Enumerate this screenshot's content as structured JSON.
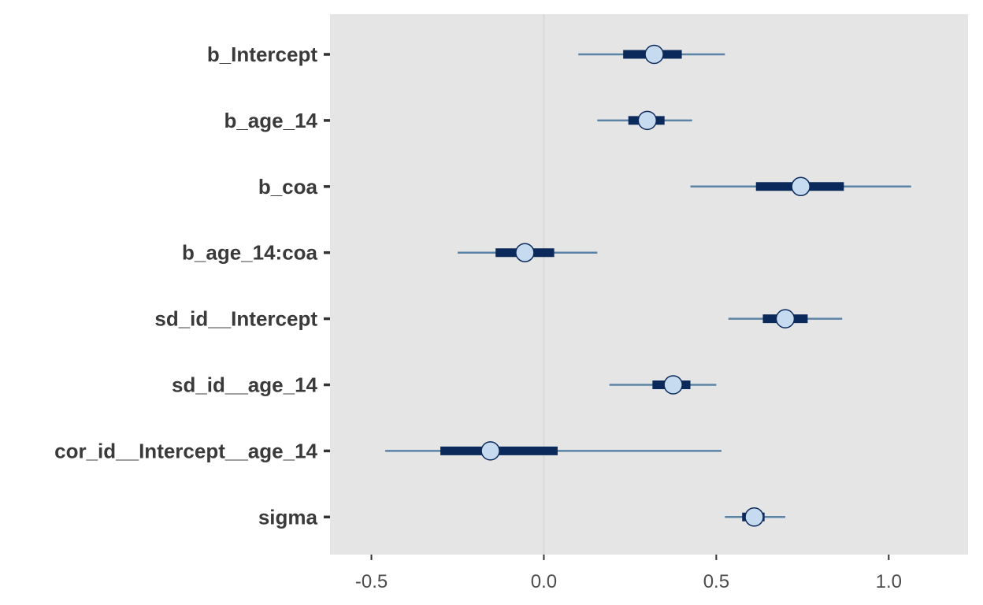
{
  "chart_data": {
    "type": "interval",
    "title": "",
    "xlabel": "",
    "ylabel": "",
    "xlim": [
      -0.62,
      1.23
    ],
    "x_ticks": [
      -0.5,
      0.0,
      0.5,
      1.0
    ],
    "x_tick_labels": [
      "-0.5",
      "0.0",
      "0.5",
      "1.0"
    ],
    "reference_line_x": 0,
    "grid": false,
    "legend": "none",
    "parameters": [
      {
        "name": "b_Intercept",
        "estimate": 0.32,
        "inner": [
          0.23,
          0.4
        ],
        "outer": [
          0.1,
          0.525
        ]
      },
      {
        "name": "b_age_14",
        "estimate": 0.3,
        "inner": [
          0.245,
          0.35
        ],
        "outer": [
          0.155,
          0.43
        ]
      },
      {
        "name": "b_coa",
        "estimate": 0.745,
        "inner": [
          0.615,
          0.87
        ],
        "outer": [
          0.425,
          1.065
        ]
      },
      {
        "name": "b_age_14:coa",
        "estimate": -0.055,
        "inner": [
          -0.14,
          0.03
        ],
        "outer": [
          -0.25,
          0.155
        ]
      },
      {
        "name": "sd_id__Intercept",
        "estimate": 0.7,
        "inner": [
          0.635,
          0.765
        ],
        "outer": [
          0.535,
          0.865
        ]
      },
      {
        "name": "sd_id__age_14",
        "estimate": 0.375,
        "inner": [
          0.315,
          0.425
        ],
        "outer": [
          0.19,
          0.5
        ]
      },
      {
        "name": "cor_id__Intercept__age_14",
        "estimate": -0.155,
        "inner": [
          -0.3,
          0.04
        ],
        "outer": [
          -0.46,
          0.515
        ]
      },
      {
        "name": "sigma",
        "estimate": 0.61,
        "inner": [
          0.575,
          0.64
        ],
        "outer": [
          0.525,
          0.7
        ]
      }
    ],
    "colors": {
      "panel_background": "#e5e5e5",
      "reference_line": "#d9d9d9",
      "outer_interval": "#5a83a6",
      "inner_interval": "#0b2a5b",
      "point_fill": "#c6dbef",
      "point_stroke": "#0b2a5b",
      "tick": "#333333"
    }
  }
}
